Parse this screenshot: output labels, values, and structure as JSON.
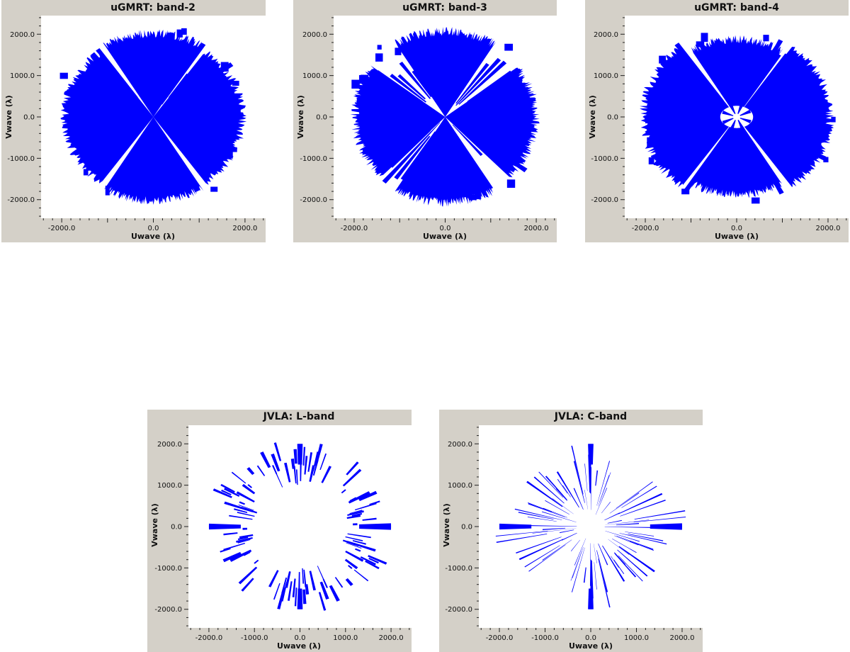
{
  "colors": {
    "panel_bg": "#d4d0c8",
    "plot_bg": "#ffffff",
    "uv_points": "#0000ff"
  },
  "chart_data": [
    {
      "type": "scatter",
      "title": "uGMRT: band-2",
      "xlabel": "Uwave (λ)",
      "ylabel": "Vwave (λ)",
      "xlim": [
        -2450,
        2450
      ],
      "ylim": [
        -2450,
        2450
      ],
      "xticks": [
        "-2000.0",
        "-1000.0",
        "0.0",
        "1000.0",
        "2000.0"
      ],
      "yticks": [
        "2000.0",
        "1000.0",
        "0.0",
        "-1000.0",
        "-2000.0"
      ],
      "tick_values": [
        -2000,
        -1000,
        0,
        1000,
        2000
      ],
      "grid": false,
      "coverage": "dense",
      "max_uv_radius": 2150,
      "pattern_ranges": [
        [
          0,
          1300
        ],
        [
          10,
          14
        ],
        [
          1800,
          1900
        ],
        [
          2200,
          2500
        ]
      ]
    },
    {
      "type": "scatter",
      "title": "uGMRT: band-3",
      "xlabel": "Uwave (λ)",
      "ylabel": "Vwave (λ)",
      "xlim": [
        -2450,
        2450
      ],
      "ylim": [
        -2450,
        2450
      ],
      "xticks": [
        "-2000.0",
        "-1000.0",
        "0.0",
        "1000.0",
        "2000.0"
      ],
      "yticks": [
        "2000.0",
        "1000.0",
        "0.0",
        "-1000.0",
        "-2000.0"
      ],
      "tick_values": [
        -2000,
        -1000,
        0,
        1000,
        2000
      ],
      "grid": false,
      "coverage": "dense",
      "max_uv_radius": 2200,
      "pattern_ranges": [
        [
          0,
          1100
        ],
        [
          100,
          106
        ],
        [
          800,
          900
        ],
        [
          2200,
          2500
        ]
      ]
    },
    {
      "type": "scatter",
      "title": "uGMRT: band-4",
      "xlabel": "Uwave (λ)",
      "ylabel": "Vwave (λ)",
      "xlim": [
        -2450,
        2450
      ],
      "ylim": [
        -2450,
        2450
      ],
      "xticks": [
        "-2000.0",
        "-1000.0",
        "0.0",
        "1000.0",
        "2000.0"
      ],
      "yticks": [
        "2000.0",
        "1000.0",
        "0.0",
        "-1000.0",
        "-2000.0"
      ],
      "tick_values": [
        -2000,
        -1000,
        0,
        1000,
        2000
      ],
      "grid": false,
      "coverage": "dense",
      "max_uv_radius": 2200,
      "pattern_ranges": [
        [
          0,
          1400
        ],
        [
          50,
          55
        ],
        [
          2300,
          2500
        ],
        [
          2700,
          2800
        ]
      ]
    },
    {
      "type": "scatter",
      "title": "JVLA: L-band",
      "xlabel": "Uwave (λ)",
      "ylabel": "Vwave (λ)",
      "xlim": [
        -2450,
        2450
      ],
      "ylim": [
        -2450,
        2450
      ],
      "xticks": [
        "-2000.0",
        "-1000.0",
        "0.0",
        "1000.0",
        "2000.0"
      ],
      "yticks": [
        "2000.0",
        "1000.0",
        "0.0",
        "-1000.0",
        "-2000.0"
      ],
      "tick_values": [
        -2000,
        -1000,
        0,
        1000,
        2000
      ],
      "grid": false,
      "coverage": "sparse",
      "max_uv_radius": 2100,
      "pattern_ranges": [
        [
          0,
          100
        ],
        [
          1,
          16
        ],
        [
          2000,
          2300
        ],
        [
          1500,
          2000
        ]
      ]
    },
    {
      "type": "scatter",
      "title": "JVLA: C-band",
      "xlabel": "Uwave (λ)",
      "ylabel": "Vwave (λ)",
      "xlim": [
        -2450,
        2450
      ],
      "ylim": [
        -2450,
        2450
      ],
      "xticks": [
        "-2000.0",
        "-1000.0",
        "0.0",
        "1000.0",
        "2000.0"
      ],
      "yticks": [
        "2000.0",
        "1000.0",
        "0.0",
        "-1000.0",
        "-2000.0"
      ],
      "tick_values": [
        -2000,
        -1000,
        0,
        1000,
        2000
      ],
      "grid": false,
      "coverage": "sparse",
      "max_uv_radius": 2100,
      "pattern_ranges": [
        [
          0,
          400
        ],
        [
          40,
          60
        ],
        [
          300,
          700
        ],
        [
          1500,
          2050
        ]
      ]
    }
  ]
}
